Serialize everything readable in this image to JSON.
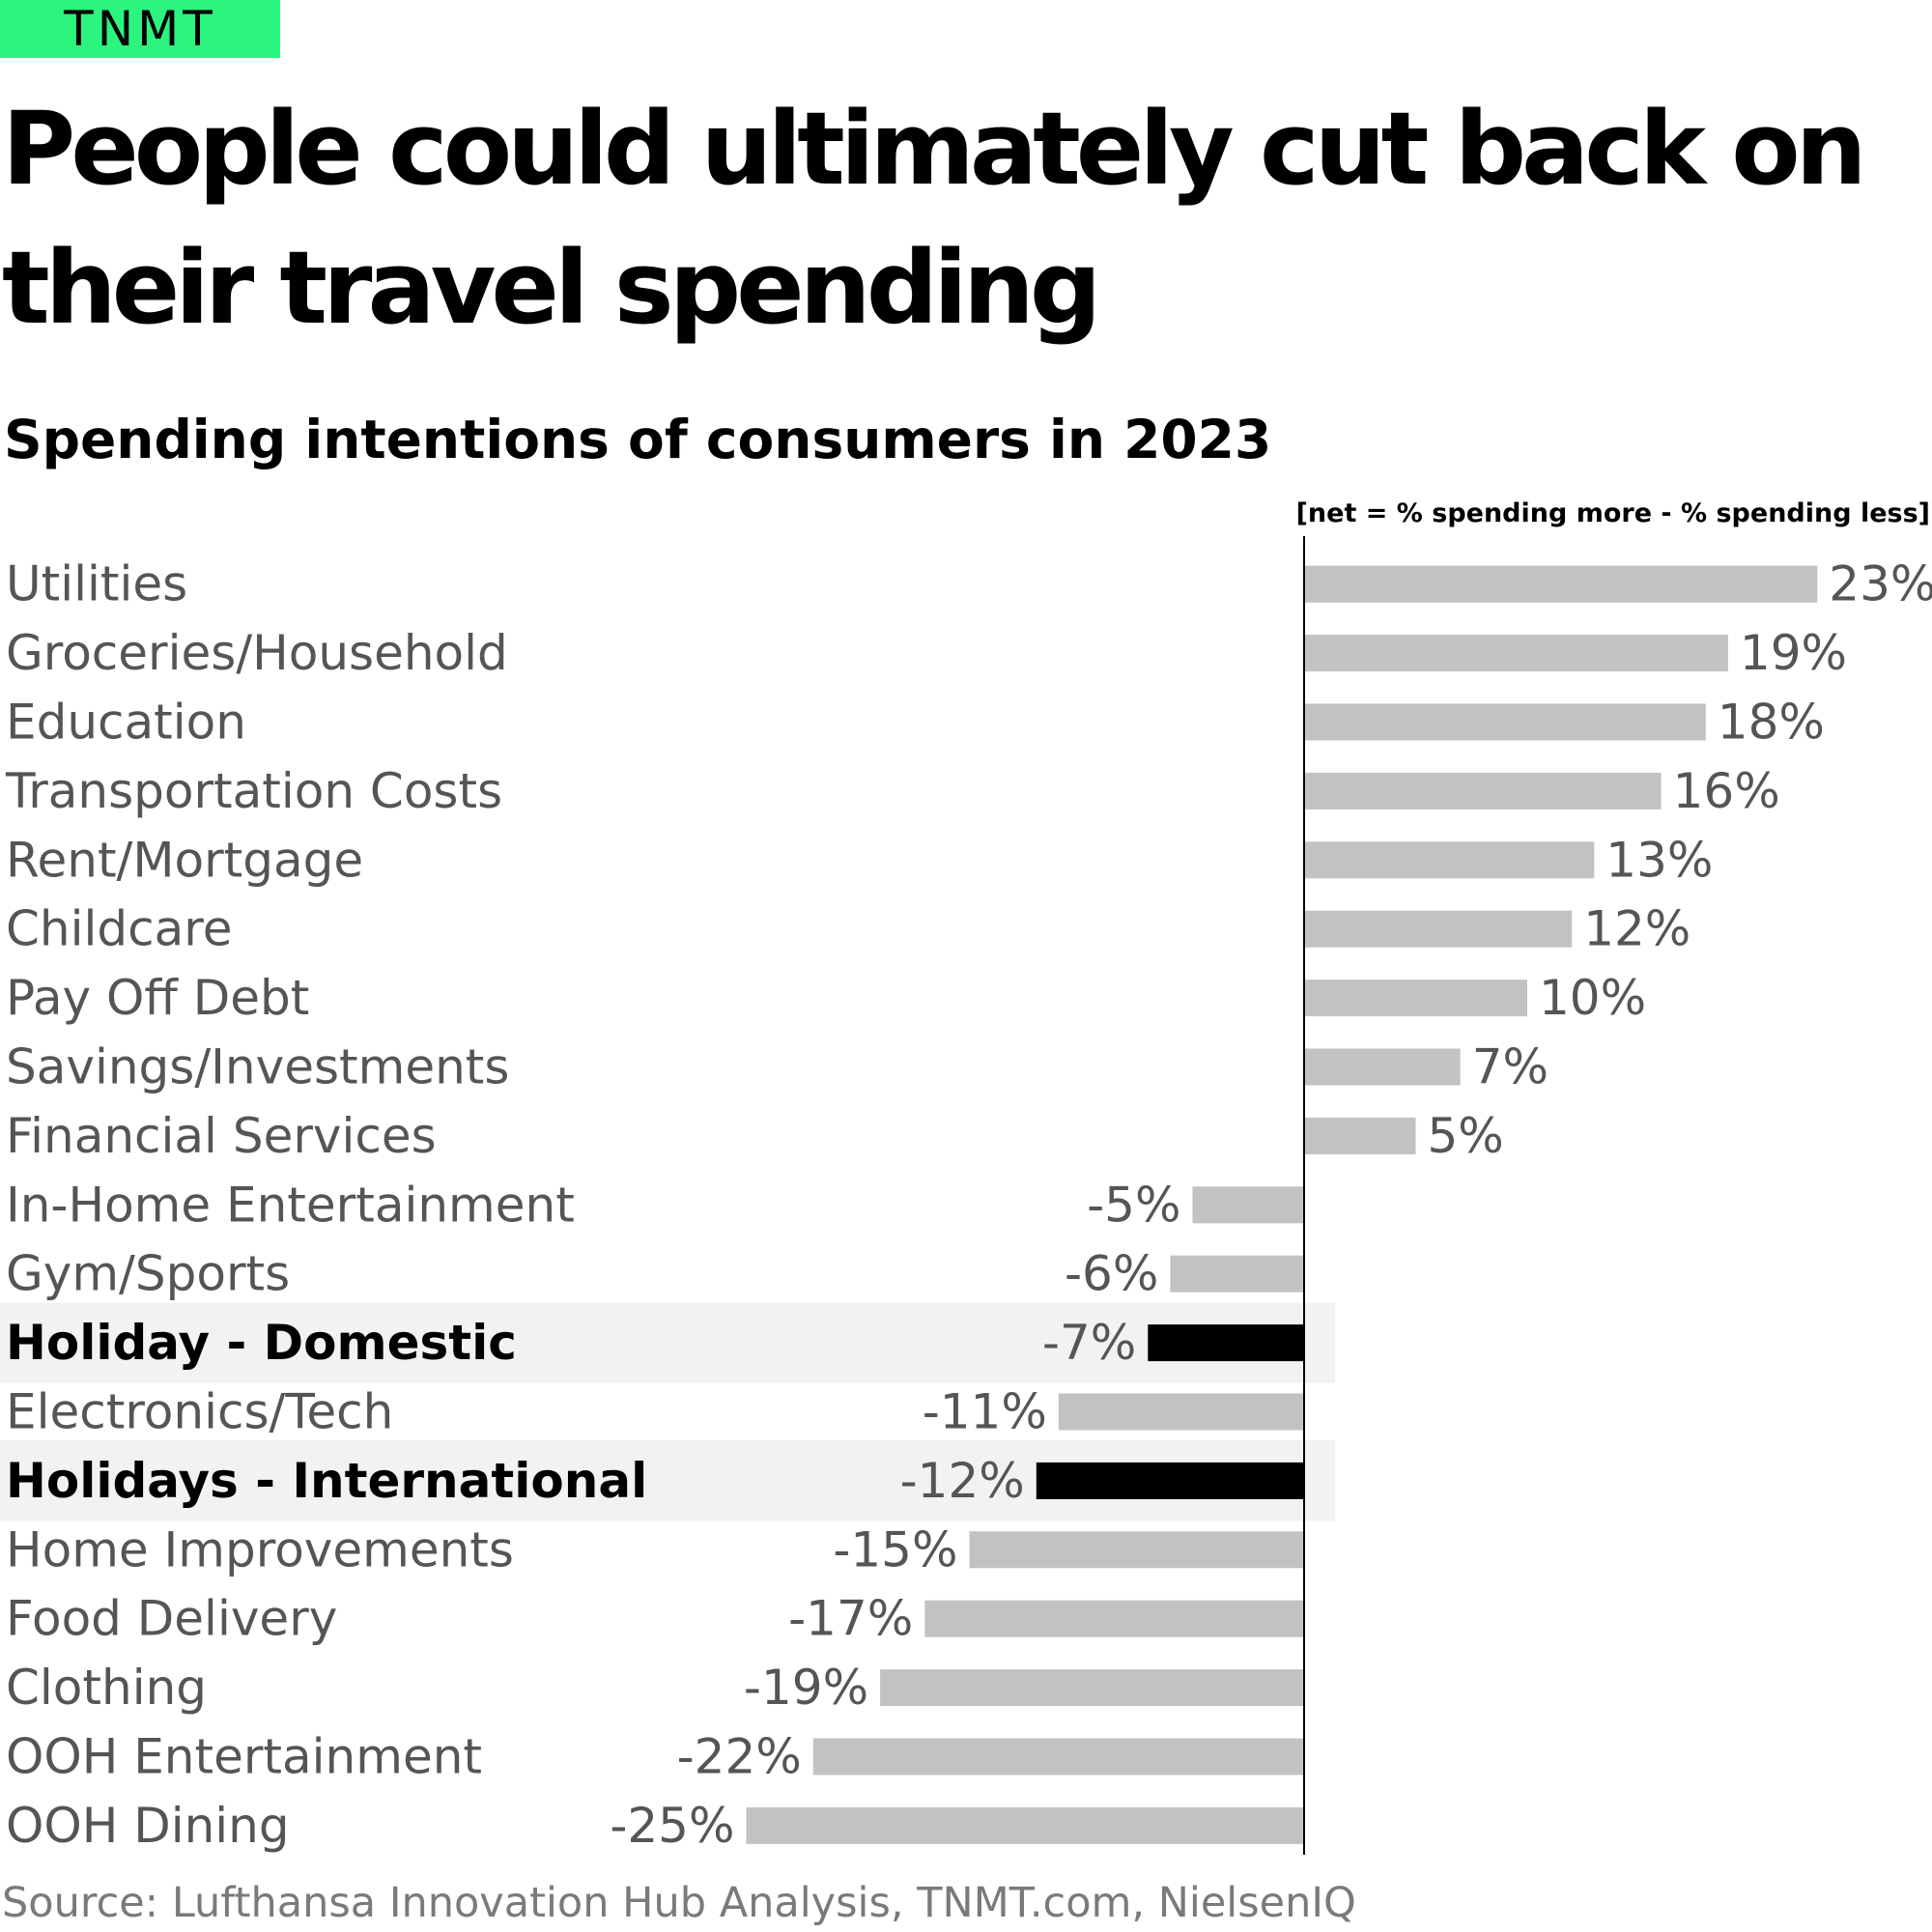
{
  "brand": {
    "logo_text": "TNMT",
    "logo_color": "#2bf57e"
  },
  "headline": "People could ultimately cut back on their travel spending",
  "subtitle": "Spending intentions of consumers in 2023",
  "note": "[net = % spending more - % spending less]",
  "source": "Source: Lufthansa Innovation Hub Analysis, TNMT.com, NielsenIQ",
  "chart_data": {
    "type": "bar",
    "orientation": "horizontal",
    "categories": [
      "Utilities",
      "Groceries/Household",
      "Education",
      "Transportation Costs",
      "Rent/Mortgage",
      "Childcare",
      "Pay Off Debt",
      "Savings/Investments",
      "Financial Services",
      "In-Home Entertainment",
      "Gym/Sports",
      "Holiday - Domestic",
      "Electronics/Tech",
      "Holidays - International",
      "Home Improvements",
      "Food Delivery",
      "Clothing",
      "OOH Entertainment",
      "OOH Dining"
    ],
    "values": [
      23,
      19,
      18,
      16,
      13,
      12,
      10,
      7,
      5,
      -5,
      -6,
      -7,
      -11,
      -12,
      -15,
      -17,
      -19,
      -22,
      -25
    ],
    "value_labels": [
      "23%",
      "19%",
      "18%",
      "16%",
      "13%",
      "12%",
      "10%",
      "7%",
      "5%",
      "-5%",
      "-6%",
      "-7%",
      "-11%",
      "-12%",
      "-15%",
      "-17%",
      "-19%",
      "-22%",
      "-25%"
    ],
    "highlighted": [
      "Holiday - Domestic",
      "Holidays - International"
    ],
    "xlim": [
      -25,
      23
    ],
    "grid": false,
    "zero_line": true,
    "colors": {
      "bar": "#c2c2c2",
      "bar_highlight": "#000000",
      "highlight_band": "#f2f2f2",
      "label": "#555555",
      "label_highlight": "#000000",
      "zero_line": "#000000"
    }
  }
}
